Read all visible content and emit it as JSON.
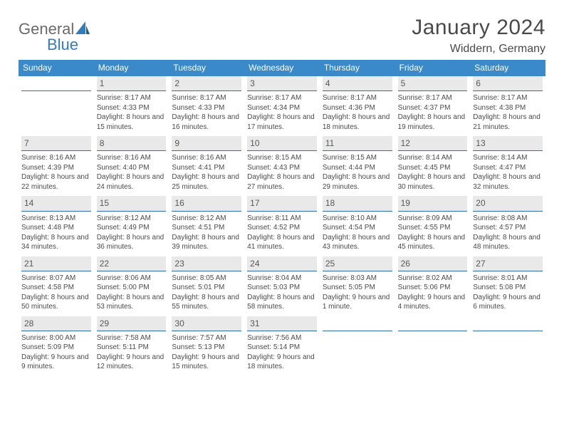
{
  "logo": {
    "text_a": "General",
    "text_b": "Blue"
  },
  "title": "January 2024",
  "location": "Widdern, Germany",
  "colors": {
    "header_bg": "#3a8ac9",
    "header_text": "#ffffff",
    "daynum_bg": "#e9e9e9",
    "daynum_border": "#2f6fa8",
    "body_text": "#4a4a4a",
    "logo_gray": "#6a6a6a",
    "logo_blue": "#2f7dbf",
    "page_bg": "#ffffff"
  },
  "weekdays": [
    "Sunday",
    "Monday",
    "Tuesday",
    "Wednesday",
    "Thursday",
    "Friday",
    "Saturday"
  ],
  "weeks": [
    [
      {
        "n": "",
        "lines": [
          "",
          "",
          ""
        ]
      },
      {
        "n": "1",
        "lines": [
          "Sunrise: 8:17 AM",
          "Sunset: 4:33 PM",
          "Daylight: 8 hours and 15 minutes."
        ]
      },
      {
        "n": "2",
        "lines": [
          "Sunrise: 8:17 AM",
          "Sunset: 4:33 PM",
          "Daylight: 8 hours and 16 minutes."
        ]
      },
      {
        "n": "3",
        "lines": [
          "Sunrise: 8:17 AM",
          "Sunset: 4:34 PM",
          "Daylight: 8 hours and 17 minutes."
        ]
      },
      {
        "n": "4",
        "lines": [
          "Sunrise: 8:17 AM",
          "Sunset: 4:36 PM",
          "Daylight: 8 hours and 18 minutes."
        ]
      },
      {
        "n": "5",
        "lines": [
          "Sunrise: 8:17 AM",
          "Sunset: 4:37 PM",
          "Daylight: 8 hours and 19 minutes."
        ]
      },
      {
        "n": "6",
        "lines": [
          "Sunrise: 8:17 AM",
          "Sunset: 4:38 PM",
          "Daylight: 8 hours and 21 minutes."
        ]
      }
    ],
    [
      {
        "n": "7",
        "lines": [
          "Sunrise: 8:16 AM",
          "Sunset: 4:39 PM",
          "Daylight: 8 hours and 22 minutes."
        ]
      },
      {
        "n": "8",
        "lines": [
          "Sunrise: 8:16 AM",
          "Sunset: 4:40 PM",
          "Daylight: 8 hours and 24 minutes."
        ]
      },
      {
        "n": "9",
        "lines": [
          "Sunrise: 8:16 AM",
          "Sunset: 4:41 PM",
          "Daylight: 8 hours and 25 minutes."
        ]
      },
      {
        "n": "10",
        "lines": [
          "Sunrise: 8:15 AM",
          "Sunset: 4:43 PM",
          "Daylight: 8 hours and 27 minutes."
        ]
      },
      {
        "n": "11",
        "lines": [
          "Sunrise: 8:15 AM",
          "Sunset: 4:44 PM",
          "Daylight: 8 hours and 29 minutes."
        ]
      },
      {
        "n": "12",
        "lines": [
          "Sunrise: 8:14 AM",
          "Sunset: 4:45 PM",
          "Daylight: 8 hours and 30 minutes."
        ]
      },
      {
        "n": "13",
        "lines": [
          "Sunrise: 8:14 AM",
          "Sunset: 4:47 PM",
          "Daylight: 8 hours and 32 minutes."
        ]
      }
    ],
    [
      {
        "n": "14",
        "lines": [
          "Sunrise: 8:13 AM",
          "Sunset: 4:48 PM",
          "Daylight: 8 hours and 34 minutes."
        ]
      },
      {
        "n": "15",
        "lines": [
          "Sunrise: 8:12 AM",
          "Sunset: 4:49 PM",
          "Daylight: 8 hours and 36 minutes."
        ]
      },
      {
        "n": "16",
        "lines": [
          "Sunrise: 8:12 AM",
          "Sunset: 4:51 PM",
          "Daylight: 8 hours and 39 minutes."
        ]
      },
      {
        "n": "17",
        "lines": [
          "Sunrise: 8:11 AM",
          "Sunset: 4:52 PM",
          "Daylight: 8 hours and 41 minutes."
        ]
      },
      {
        "n": "18",
        "lines": [
          "Sunrise: 8:10 AM",
          "Sunset: 4:54 PM",
          "Daylight: 8 hours and 43 minutes."
        ]
      },
      {
        "n": "19",
        "lines": [
          "Sunrise: 8:09 AM",
          "Sunset: 4:55 PM",
          "Daylight: 8 hours and 45 minutes."
        ]
      },
      {
        "n": "20",
        "lines": [
          "Sunrise: 8:08 AM",
          "Sunset: 4:57 PM",
          "Daylight: 8 hours and 48 minutes."
        ]
      }
    ],
    [
      {
        "n": "21",
        "lines": [
          "Sunrise: 8:07 AM",
          "Sunset: 4:58 PM",
          "Daylight: 8 hours and 50 minutes."
        ]
      },
      {
        "n": "22",
        "lines": [
          "Sunrise: 8:06 AM",
          "Sunset: 5:00 PM",
          "Daylight: 8 hours and 53 minutes."
        ]
      },
      {
        "n": "23",
        "lines": [
          "Sunrise: 8:05 AM",
          "Sunset: 5:01 PM",
          "Daylight: 8 hours and 55 minutes."
        ]
      },
      {
        "n": "24",
        "lines": [
          "Sunrise: 8:04 AM",
          "Sunset: 5:03 PM",
          "Daylight: 8 hours and 58 minutes."
        ]
      },
      {
        "n": "25",
        "lines": [
          "Sunrise: 8:03 AM",
          "Sunset: 5:05 PM",
          "Daylight: 9 hours and 1 minute."
        ]
      },
      {
        "n": "26",
        "lines": [
          "Sunrise: 8:02 AM",
          "Sunset: 5:06 PM",
          "Daylight: 9 hours and 4 minutes."
        ]
      },
      {
        "n": "27",
        "lines": [
          "Sunrise: 8:01 AM",
          "Sunset: 5:08 PM",
          "Daylight: 9 hours and 6 minutes."
        ]
      }
    ],
    [
      {
        "n": "28",
        "lines": [
          "Sunrise: 8:00 AM",
          "Sunset: 5:09 PM",
          "Daylight: 9 hours and 9 minutes."
        ]
      },
      {
        "n": "29",
        "lines": [
          "Sunrise: 7:58 AM",
          "Sunset: 5:11 PM",
          "Daylight: 9 hours and 12 minutes."
        ]
      },
      {
        "n": "30",
        "lines": [
          "Sunrise: 7:57 AM",
          "Sunset: 5:13 PM",
          "Daylight: 9 hours and 15 minutes."
        ]
      },
      {
        "n": "31",
        "lines": [
          "Sunrise: 7:56 AM",
          "Sunset: 5:14 PM",
          "Daylight: 9 hours and 18 minutes."
        ]
      },
      {
        "n": "",
        "lines": [
          "",
          "",
          ""
        ]
      },
      {
        "n": "",
        "lines": [
          "",
          "",
          ""
        ]
      },
      {
        "n": "",
        "lines": [
          "",
          "",
          ""
        ]
      }
    ]
  ]
}
